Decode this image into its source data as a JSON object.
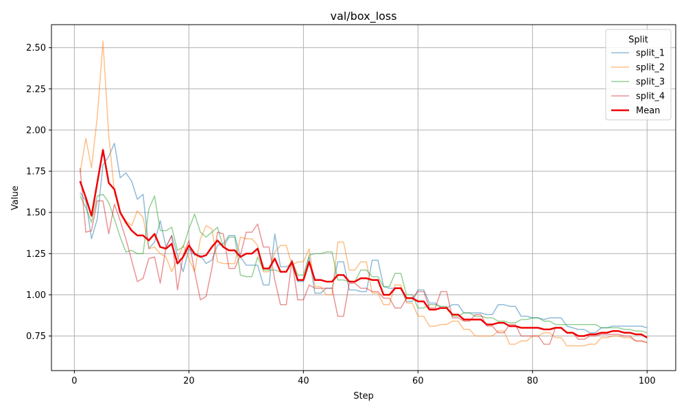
{
  "chart_data": {
    "type": "line",
    "title": "val/box_loss",
    "xlabel": "Step",
    "ylabel": "Value",
    "xlim": [
      -4,
      105
    ],
    "ylim": [
      0.54,
      2.64
    ],
    "xticks": [
      0,
      20,
      40,
      60,
      80,
      100
    ],
    "yticks": [
      0.75,
      1.0,
      1.25,
      1.5,
      1.75,
      2.0,
      2.25,
      2.5
    ],
    "ytick_labels": [
      "0.75",
      "1.00",
      "1.25",
      "1.50",
      "1.75",
      "2.00",
      "2.25",
      "2.50"
    ],
    "grid": true,
    "legend": {
      "title": "Split",
      "placement": "top-right"
    },
    "x": [
      1,
      2,
      3,
      4,
      5,
      6,
      7,
      8,
      9,
      10,
      11,
      12,
      13,
      14,
      15,
      16,
      17,
      18,
      19,
      20,
      21,
      22,
      23,
      24,
      25,
      26,
      27,
      28,
      29,
      30,
      31,
      32,
      33,
      34,
      35,
      36,
      37,
      38,
      39,
      40,
      41,
      42,
      43,
      44,
      45,
      46,
      47,
      48,
      49,
      50,
      51,
      52,
      53,
      54,
      55,
      56,
      57,
      58,
      59,
      60,
      61,
      62,
      63,
      64,
      65,
      66,
      67,
      68,
      69,
      70,
      71,
      72,
      73,
      74,
      75,
      76,
      77,
      78,
      79,
      80,
      81,
      82,
      83,
      84,
      85,
      86,
      87,
      88,
      89,
      90,
      91,
      92,
      93,
      94,
      95,
      96,
      97,
      98,
      99,
      100
    ],
    "series": [
      {
        "name": "split_1",
        "color": "#1f77b4",
        "opacity": 0.5,
        "width": 1.5,
        "values": [
          1.62,
          1.57,
          1.34,
          1.46,
          1.79,
          1.84,
          1.92,
          1.71,
          1.74,
          1.69,
          1.58,
          1.61,
          1.28,
          1.32,
          1.45,
          1.29,
          1.36,
          1.24,
          1.14,
          1.28,
          1.24,
          1.24,
          1.19,
          1.21,
          1.3,
          1.31,
          1.36,
          1.36,
          1.23,
          1.18,
          1.18,
          1.18,
          1.06,
          1.06,
          1.37,
          1.17,
          1.17,
          1.19,
          1.08,
          1.08,
          1.23,
          1.01,
          1.01,
          1.04,
          1.04,
          1.2,
          1.2,
          1.03,
          1.03,
          1.02,
          1.02,
          1.21,
          1.21,
          1.05,
          1.04,
          1.04,
          1.04,
          0.96,
          0.96,
          1.03,
          1.03,
          0.95,
          0.95,
          0.92,
          0.92,
          0.94,
          0.94,
          0.89,
          0.89,
          0.89,
          0.89,
          0.88,
          0.88,
          0.94,
          0.94,
          0.93,
          0.93,
          0.87,
          0.87,
          0.86,
          0.86,
          0.85,
          0.86,
          0.86,
          0.86,
          0.81,
          0.8,
          0.79,
          0.79,
          0.77,
          0.77,
          0.8,
          0.8,
          0.81,
          0.81,
          0.81,
          0.81,
          0.81,
          0.81,
          0.8
        ]
      },
      {
        "name": "split_2",
        "color": "#ff7f0e",
        "opacity": 0.5,
        "width": 1.5,
        "values": [
          1.74,
          1.95,
          1.77,
          2.08,
          2.54,
          1.97,
          1.62,
          1.5,
          1.45,
          1.42,
          1.51,
          1.47,
          1.28,
          1.29,
          1.25,
          1.23,
          1.14,
          1.22,
          1.3,
          1.22,
          1.14,
          1.34,
          1.42,
          1.4,
          1.2,
          1.19,
          1.19,
          1.19,
          1.35,
          1.34,
          1.34,
          1.3,
          1.14,
          1.14,
          1.26,
          1.3,
          1.3,
          1.18,
          1.2,
          1.2,
          1.28,
          1.05,
          1.05,
          1.0,
          1.0,
          1.32,
          1.32,
          1.15,
          1.15,
          1.2,
          1.2,
          1.01,
          1.01,
          0.94,
          0.94,
          1.06,
          1.06,
          0.95,
          0.95,
          0.87,
          0.87,
          0.81,
          0.81,
          0.82,
          0.82,
          0.84,
          0.84,
          0.79,
          0.79,
          0.75,
          0.75,
          0.75,
          0.75,
          0.78,
          0.78,
          0.7,
          0.7,
          0.72,
          0.72,
          0.75,
          0.75,
          0.77,
          0.77,
          0.74,
          0.74,
          0.69,
          0.69,
          0.69,
          0.69,
          0.7,
          0.7,
          0.74,
          0.74,
          0.75,
          0.75,
          0.74,
          0.74,
          0.72,
          0.72,
          0.71
        ]
      },
      {
        "name": "split_3",
        "color": "#2ca02c",
        "opacity": 0.5,
        "width": 1.5,
        "values": [
          1.6,
          1.53,
          1.44,
          1.6,
          1.61,
          1.56,
          1.46,
          1.35,
          1.26,
          1.27,
          1.25,
          1.25,
          1.52,
          1.6,
          1.39,
          1.39,
          1.41,
          1.27,
          1.29,
          1.4,
          1.49,
          1.38,
          1.35,
          1.38,
          1.41,
          1.29,
          1.35,
          1.35,
          1.12,
          1.11,
          1.11,
          1.23,
          1.15,
          1.15,
          1.15,
          1.14,
          1.14,
          1.21,
          1.12,
          1.12,
          1.24,
          1.25,
          1.25,
          1.26,
          1.26,
          1.09,
          1.09,
          1.08,
          1.08,
          1.15,
          1.15,
          1.11,
          1.11,
          1.05,
          1.05,
          1.13,
          1.13,
          1.0,
          1.0,
          0.92,
          0.92,
          0.94,
          0.94,
          0.93,
          0.93,
          0.87,
          0.87,
          0.89,
          0.89,
          0.87,
          0.87,
          0.86,
          0.86,
          0.84,
          0.84,
          0.83,
          0.83,
          0.85,
          0.85,
          0.86,
          0.86,
          0.84,
          0.84,
          0.82,
          0.82,
          0.82,
          0.82,
          0.82,
          0.82,
          0.82,
          0.82,
          0.8,
          0.8,
          0.8,
          0.8,
          0.79,
          0.79,
          0.78,
          0.78,
          0.77
        ]
      },
      {
        "name": "split_4",
        "color": "#d62728",
        "opacity": 0.5,
        "width": 1.5,
        "values": [
          1.77,
          1.38,
          1.39,
          1.57,
          1.57,
          1.37,
          1.55,
          1.45,
          1.34,
          1.21,
          1.08,
          1.1,
          1.22,
          1.23,
          1.07,
          1.29,
          1.36,
          1.03,
          1.24,
          1.33,
          1.14,
          0.97,
          0.99,
          1.16,
          1.38,
          1.37,
          1.16,
          1.16,
          1.24,
          1.38,
          1.38,
          1.43,
          1.29,
          1.29,
          1.09,
          0.94,
          0.94,
          1.21,
          0.97,
          0.97,
          1.06,
          1.04,
          1.04,
          1.04,
          1.04,
          0.87,
          0.87,
          1.07,
          1.07,
          1.04,
          1.04,
          1.02,
          1.02,
          0.98,
          0.98,
          0.92,
          0.92,
          0.98,
          0.98,
          1.02,
          1.02,
          0.92,
          0.92,
          1.02,
          1.02,
          0.86,
          0.86,
          0.84,
          0.84,
          0.88,
          0.88,
          0.81,
          0.81,
          0.77,
          0.77,
          0.82,
          0.82,
          0.75,
          0.75,
          0.75,
          0.75,
          0.7,
          0.7,
          0.8,
          0.8,
          0.77,
          0.77,
          0.73,
          0.73,
          0.75,
          0.75,
          0.76,
          0.76,
          0.76,
          0.76,
          0.75,
          0.75,
          0.72,
          0.72,
          0.71
        ]
      },
      {
        "name": "Mean",
        "color": "#ee0000",
        "opacity": 1,
        "width": 2.5,
        "values": [
          1.69,
          1.59,
          1.48,
          1.68,
          1.88,
          1.68,
          1.64,
          1.5,
          1.44,
          1.39,
          1.36,
          1.36,
          1.33,
          1.37,
          1.29,
          1.28,
          1.31,
          1.19,
          1.23,
          1.3,
          1.25,
          1.23,
          1.24,
          1.29,
          1.33,
          1.29,
          1.27,
          1.27,
          1.23,
          1.25,
          1.25,
          1.28,
          1.16,
          1.16,
          1.22,
          1.14,
          1.14,
          1.2,
          1.09,
          1.09,
          1.2,
          1.09,
          1.09,
          1.08,
          1.08,
          1.12,
          1.12,
          1.08,
          1.08,
          1.1,
          1.1,
          1.09,
          1.09,
          1.0,
          1.0,
          1.04,
          1.04,
          0.98,
          0.98,
          0.96,
          0.96,
          0.91,
          0.91,
          0.92,
          0.92,
          0.88,
          0.88,
          0.85,
          0.85,
          0.85,
          0.85,
          0.82,
          0.82,
          0.83,
          0.83,
          0.81,
          0.81,
          0.8,
          0.8,
          0.8,
          0.8,
          0.79,
          0.79,
          0.8,
          0.8,
          0.77,
          0.77,
          0.75,
          0.75,
          0.76,
          0.76,
          0.77,
          0.77,
          0.78,
          0.78,
          0.77,
          0.77,
          0.76,
          0.76,
          0.74
        ]
      }
    ]
  }
}
